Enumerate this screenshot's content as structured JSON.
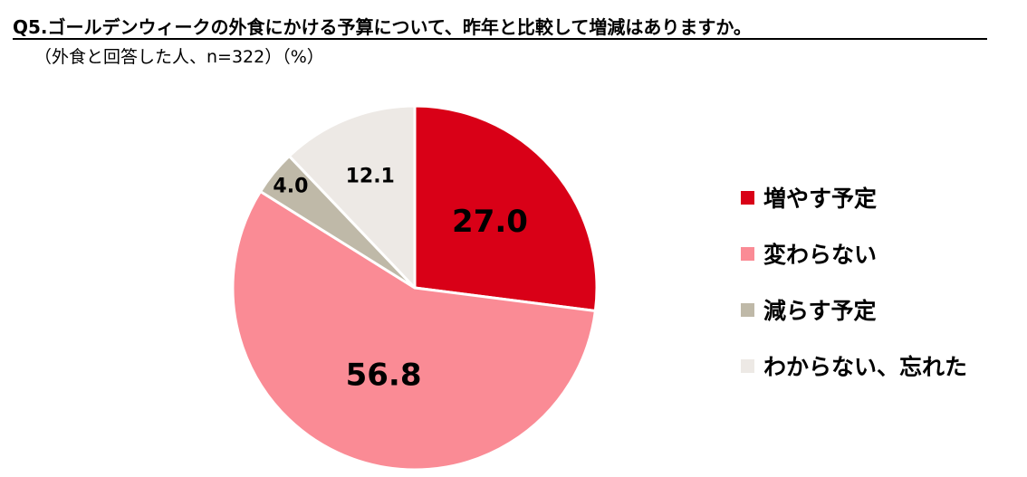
{
  "header": {
    "title": "Q5.ゴールデンウィークの外食にかける予算について、昨年と比較して増減はありますか。",
    "subtitle": "（外食と回答した人、n=322）（%）"
  },
  "chart_data": {
    "type": "pie",
    "title": "Q5.ゴールデンウィークの外食にかける予算について、昨年と比較して増減はありますか。",
    "subtitle": "（外食と回答した人、n=322）（%）",
    "start_angle": "12 o'clock",
    "direction": "clockwise",
    "legend_position": "right",
    "slices": [
      {
        "label": "増やす予定",
        "value": 27.0,
        "value_label": "27.0",
        "color": "#d90017"
      },
      {
        "label": "変わらない",
        "value": 56.8,
        "value_label": "56.8",
        "color": "#fa8b95"
      },
      {
        "label": "減らす予定",
        "value": 4.0,
        "value_label": "4.0",
        "color": "#bfb9a8"
      },
      {
        "label": "わからない、忘れた",
        "value": 12.1,
        "value_label": "12.1",
        "color": "#ede9e5"
      }
    ]
  }
}
